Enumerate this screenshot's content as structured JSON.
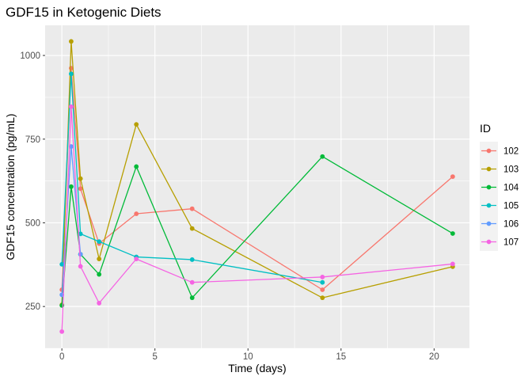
{
  "chart_data": {
    "type": "line",
    "title": "GDF15 in Ketogenic Diets",
    "xlabel": "Time (days)",
    "ylabel": "GDF15 concentration (pg/mL)",
    "xlim": [
      -0.9,
      21.9
    ],
    "ylim": [
      125,
      1090
    ],
    "x_ticks": [
      0,
      5,
      10,
      15,
      20
    ],
    "y_ticks": [
      250,
      500,
      750,
      1000
    ],
    "x_tick_labels": [
      "0",
      "5",
      "10",
      "15",
      "20"
    ],
    "y_tick_labels": [
      "250",
      "500",
      "750",
      "1000"
    ],
    "grid": true,
    "legend": {
      "title": "ID",
      "position": "right"
    },
    "series": [
      {
        "name": "102",
        "color": "#F8766D",
        "points": [
          [
            0,
            300
          ],
          [
            0.5,
            962
          ],
          [
            1,
            602
          ],
          [
            2,
            438
          ],
          [
            4,
            527
          ],
          [
            7,
            542
          ],
          [
            14,
            300
          ],
          [
            21,
            638
          ]
        ]
      },
      {
        "name": "103",
        "color": "#B79F00",
        "points": [
          [
            0,
            255
          ],
          [
            0.5,
            1042
          ],
          [
            1,
            632
          ],
          [
            2,
            392
          ],
          [
            4,
            794
          ],
          [
            7,
            483
          ],
          [
            14,
            276
          ],
          [
            21,
            369
          ]
        ]
      },
      {
        "name": "104",
        "color": "#00BA38",
        "points": [
          [
            0,
            253
          ],
          [
            0.5,
            608
          ],
          [
            1,
            406
          ],
          [
            2,
            346
          ],
          [
            4,
            668
          ],
          [
            7,
            276
          ],
          [
            14,
            698
          ],
          [
            21,
            468
          ]
        ]
      },
      {
        "name": "105",
        "color": "#00BFC4",
        "points": [
          [
            0,
            376
          ],
          [
            0.5,
            945
          ],
          [
            1,
            467
          ],
          [
            2,
            444
          ],
          [
            4,
            398
          ],
          [
            7,
            390
          ],
          [
            14,
            322
          ]
        ]
      },
      {
        "name": "106",
        "color": "#619CFF",
        "points": [
          [
            0,
            285
          ],
          [
            0.5,
            728
          ],
          [
            1,
            406
          ]
        ]
      },
      {
        "name": "107",
        "color": "#F564E3",
        "points": [
          [
            0,
            175
          ],
          [
            0.5,
            847
          ],
          [
            1,
            370
          ],
          [
            2,
            260
          ],
          [
            4,
            392
          ],
          [
            7,
            322
          ],
          [
            14,
            338
          ],
          [
            21,
            377
          ]
        ]
      }
    ]
  }
}
